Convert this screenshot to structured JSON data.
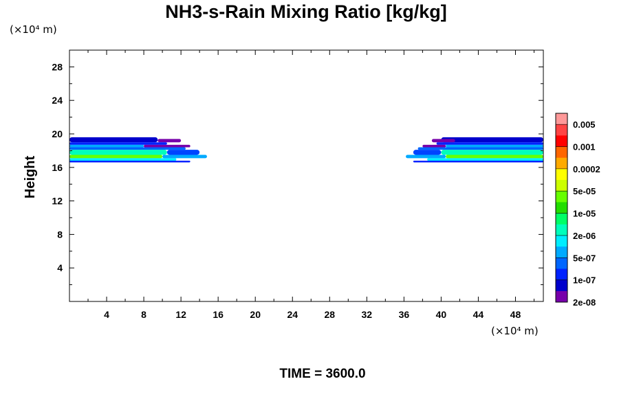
{
  "chart_data": {
    "type": "heatmap",
    "title": "NH3-s-Rain Mixing Ratio [kg/kg]",
    "ylabel": "Height",
    "x_unit": "(×10⁴ m)",
    "y_unit": "(×10⁴ m)",
    "footer": "TIME = 3600.0",
    "xlim": [
      0,
      51
    ],
    "ylim": [
      0,
      30
    ],
    "x_ticks": [
      4,
      8,
      12,
      16,
      20,
      24,
      28,
      32,
      36,
      40,
      44,
      48
    ],
    "y_ticks": [
      4,
      8,
      12,
      16,
      20,
      24,
      28
    ],
    "x_tick_labels": [
      "4",
      "8",
      "12",
      "16",
      "20",
      "24",
      "28",
      "32",
      "36",
      "40",
      "44",
      "48"
    ],
    "y_tick_labels": [
      "4",
      "8",
      "12",
      "16",
      "20",
      "24",
      "28"
    ],
    "colorbar": {
      "labels": [
        "0.005",
        "0.001",
        "0.0002",
        "5e-05",
        "1e-05",
        "2e-06",
        "5e-07",
        "1e-07",
        "2e-08"
      ],
      "colors": [
        "#ff9999",
        "#ff4444",
        "#ff0000",
        "#ff6600",
        "#ffaa00",
        "#ffff00",
        "#ccff00",
        "#66ff00",
        "#22dd00",
        "#00ff66",
        "#00ffbb",
        "#00eeff",
        "#00aaff",
        "#0066ff",
        "#0022ff",
        "#0000cc",
        "#7700aa"
      ]
    },
    "bands": [
      {
        "x0": 0,
        "x1": 9.5,
        "y0": 19.0,
        "y1": 19.6,
        "color": "#0000cc"
      },
      {
        "x0": 9.5,
        "x1": 12,
        "y0": 19.0,
        "y1": 19.4,
        "color": "#7700aa"
      },
      {
        "x0": 0,
        "x1": 10.5,
        "y0": 18.7,
        "y1": 19.0,
        "color": "#0022ff"
      },
      {
        "x0": 0,
        "x1": 8,
        "y0": 18.4,
        "y1": 18.7,
        "color": "#00aaff"
      },
      {
        "x0": 8,
        "x1": 13,
        "y0": 18.4,
        "y1": 18.7,
        "color": "#7700aa"
      },
      {
        "x0": 0,
        "x1": 12.5,
        "y0": 18.1,
        "y1": 18.4,
        "color": "#0066ff"
      },
      {
        "x0": 0,
        "x1": 10.5,
        "y0": 17.5,
        "y1": 18.1,
        "color": "#00ffbb"
      },
      {
        "x0": 10.5,
        "x1": 14,
        "y0": 17.5,
        "y1": 18.1,
        "color": "#0044ff"
      },
      {
        "x0": 0,
        "x1": 10,
        "y0": 17.1,
        "y1": 17.5,
        "color": "#66ff00"
      },
      {
        "x0": 10,
        "x1": 14.8,
        "y0": 17.1,
        "y1": 17.5,
        "color": "#00aaff"
      },
      {
        "x0": 0,
        "x1": 11.5,
        "y0": 16.8,
        "y1": 17.1,
        "color": "#00eeff"
      },
      {
        "x0": 0,
        "x1": 13,
        "y0": 16.6,
        "y1": 16.8,
        "color": "#0022ff"
      },
      {
        "x0": 40,
        "x1": 51,
        "y0": 19.0,
        "y1": 19.6,
        "color": "#0000cc"
      },
      {
        "x0": 39,
        "x1": 41.5,
        "y0": 19.0,
        "y1": 19.4,
        "color": "#7700aa"
      },
      {
        "x0": 39.5,
        "x1": 51,
        "y0": 18.7,
        "y1": 19.0,
        "color": "#0022ff"
      },
      {
        "x0": 40.5,
        "x1": 51,
        "y0": 18.4,
        "y1": 18.7,
        "color": "#00aaff"
      },
      {
        "x0": 38,
        "x1": 40.5,
        "y0": 18.4,
        "y1": 18.7,
        "color": "#7700aa"
      },
      {
        "x0": 37.5,
        "x1": 51,
        "y0": 18.1,
        "y1": 18.4,
        "color": "#0066ff"
      },
      {
        "x0": 40,
        "x1": 51,
        "y0": 17.5,
        "y1": 18.1,
        "color": "#00ffbb"
      },
      {
        "x0": 37,
        "x1": 40,
        "y0": 17.5,
        "y1": 18.1,
        "color": "#0044ff"
      },
      {
        "x0": 40.5,
        "x1": 51,
        "y0": 17.1,
        "y1": 17.5,
        "color": "#66ff00"
      },
      {
        "x0": 36.2,
        "x1": 40.5,
        "y0": 17.1,
        "y1": 17.5,
        "color": "#00aaff"
      },
      {
        "x0": 38.5,
        "x1": 51,
        "y0": 16.8,
        "y1": 17.1,
        "color": "#00eeff"
      },
      {
        "x0": 37,
        "x1": 51,
        "y0": 16.6,
        "y1": 16.8,
        "color": "#0022ff"
      }
    ]
  }
}
